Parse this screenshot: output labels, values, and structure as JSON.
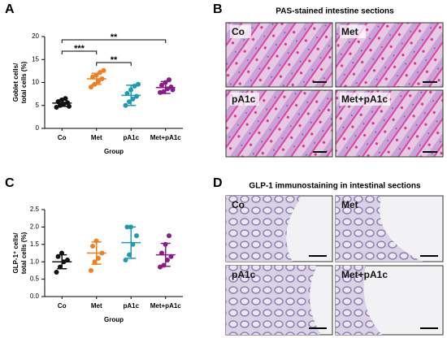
{
  "chart_data": [
    {
      "type": "dot",
      "panel": "A",
      "ylabel": [
        "Goblet cells/",
        "total cells (%)"
      ],
      "xlabel": "Group",
      "categories": [
        "Co",
        "Met",
        "pA1c",
        "Met+pA1c"
      ],
      "colors": [
        "#111111",
        "#f07f1f",
        "#1f9ab0",
        "#8b1a8b"
      ],
      "groups": [
        [
          4.6,
          5.0,
          5.3,
          5.6,
          5.8,
          6.2,
          6.5,
          4.8
        ],
        [
          9.0,
          9.6,
          10.2,
          10.8,
          11.2,
          11.6,
          12.2,
          12.6
        ],
        [
          5.0,
          5.8,
          6.4,
          7.0,
          7.6,
          8.4,
          9.2,
          9.6
        ],
        [
          7.8,
          8.0,
          8.6,
          9.0,
          9.4,
          10.0,
          10.6,
          8.4
        ]
      ],
      "means": [
        5.5,
        10.8,
        7.2,
        8.9
      ],
      "sds": [
        0.7,
        1.2,
        2.2,
        1.3
      ],
      "ylim": [
        0,
        20
      ],
      "yticks": [
        0,
        5,
        10,
        15,
        20
      ],
      "brackets": [
        {
          "groups": [
            0,
            3
          ],
          "label": "**"
        },
        {
          "groups": [
            0,
            1
          ],
          "label": "***"
        },
        {
          "groups": [
            1,
            2
          ],
          "label": "**"
        }
      ]
    },
    {
      "type": "dot",
      "panel": "C",
      "ylabel": [
        "GLP-1⁺ cells/",
        "total cells (%)"
      ],
      "xlabel": "Group",
      "categories": [
        "Co",
        "Met",
        "pA1c",
        "Met+pA1c"
      ],
      "colors": [
        "#111111",
        "#f07f1f",
        "#1f9ab0",
        "#8b1a8b"
      ],
      "groups": [
        [
          0.7,
          0.85,
          1.0,
          1.05,
          1.15,
          1.25
        ],
        [
          0.75,
          1.0,
          1.1,
          1.25,
          1.45,
          1.6
        ],
        [
          1.05,
          1.2,
          1.5,
          1.75,
          2.0,
          2.0
        ],
        [
          0.85,
          0.9,
          1.05,
          1.15,
          1.25,
          1.5,
          1.75
        ]
      ],
      "means": [
        1.0,
        1.25,
        1.55,
        1.2
      ],
      "sds": [
        0.2,
        0.32,
        0.45,
        0.33
      ],
      "ylim": [
        0,
        2.5
      ],
      "yticks": [
        {
          "value": 0,
          "label": "0.0"
        },
        0.5,
        {
          "value": 1,
          "label": "1.0"
        },
        1.5,
        {
          "value": 2,
          "label": "2.0"
        },
        2.5
      ],
      "brackets": []
    }
  ],
  "figure": {
    "panel_b": {
      "letter": "B",
      "title": "PAS-stained intestine sections",
      "labels": [
        "Co",
        "Met",
        "pA1c",
        "Met+pA1c"
      ]
    },
    "panel_d": {
      "letter": "D",
      "title": "GLP-1 immunostaining in intestinal sections",
      "labels": [
        "Co",
        "Met",
        "pA1c",
        "Met+pA1c"
      ]
    }
  }
}
